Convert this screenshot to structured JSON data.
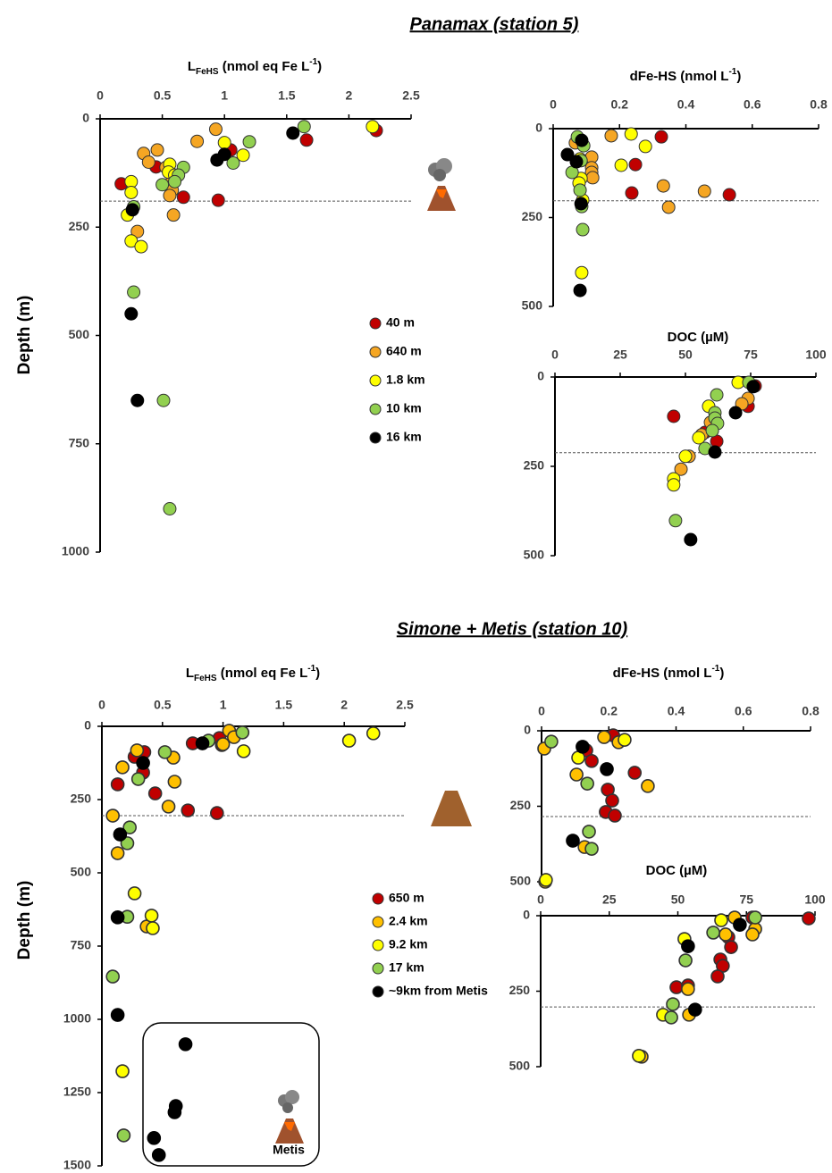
{
  "chart_data": [
    {
      "type": "scatter",
      "title": "Panamax (station 5)",
      "y_label": "Depth (m)",
      "xlabel": {
        "text": "L",
        "sub": "FeHS",
        "after": " (nmol eq Fe L",
        "sup": "-1",
        "end": ")"
      },
      "xlim": [
        0,
        2.5
      ],
      "xticks": [
        0,
        0.5,
        1,
        1.5,
        2,
        2.5
      ],
      "ylim": [
        0,
        1000
      ],
      "yticks": [
        0,
        250,
        500,
        750,
        1000
      ],
      "y_inverted": true,
      "x_axis_position": "top",
      "reference_line": 190,
      "series": [
        {
          "name": "40 m",
          "color": "#c00000",
          "x": [
            2.22,
            1.66,
            1.05,
            0.45,
            0.17,
            0.67,
            0.95
          ],
          "y": [
            27,
            49,
            72,
            111,
            150,
            181,
            188
          ]
        },
        {
          "name": "640 m",
          "color": "#f5a623",
          "x": [
            0.93,
            0.46,
            0.35,
            0.39,
            0.78,
            0.53,
            0.57,
            0.58,
            0.56,
            0.59,
            0.3
          ],
          "y": [
            24,
            72,
            80,
            100,
            52,
            112,
            148,
            165,
            177,
            222,
            260
          ]
        },
        {
          "name": "1.8 km",
          "color": "#ffff00",
          "x": [
            2.19,
            1.15,
            1.0,
            0.56,
            0.55,
            0.6,
            0.25,
            0.25,
            0.22,
            0.25,
            0.33
          ],
          "y": [
            18,
            84,
            55,
            105,
            123,
            130,
            145,
            170,
            222,
            282,
            295
          ]
        },
        {
          "name": "10 km",
          "color": "#92d050",
          "x": [
            1.64,
            1.2,
            1.07,
            0.67,
            0.63,
            0.6,
            0.5,
            0.27,
            0.27,
            0.51,
            0.56
          ],
          "y": [
            18,
            53,
            102,
            112,
            130,
            145,
            152,
            203,
            400,
            650,
            900
          ]
        },
        {
          "name": "16 km",
          "color": "#000000",
          "x": [
            1.55,
            1.0,
            0.94,
            0.26,
            0.25,
            0.3
          ],
          "y": [
            33,
            82,
            95,
            210,
            450,
            650
          ]
        }
      ]
    },
    {
      "type": "scatter",
      "xlabel": {
        "text": "dFe-HS (nmol L",
        "sup": "-1",
        "end": ")"
      },
      "xlim": [
        0,
        0.8
      ],
      "xticks": [
        0,
        0.2,
        0.4,
        0.6,
        0.8
      ],
      "ylim": [
        0,
        500
      ],
      "yticks": [
        0,
        250,
        500
      ],
      "y_inverted": true,
      "x_axis_position": "top",
      "reference_line": 203,
      "series": [
        {
          "color": "#c00000",
          "x": [
            0.326,
            0.248,
            0.237,
            0.531
          ],
          "y": [
            23,
            101,
            181,
            186
          ]
        },
        {
          "color": "#f5a623",
          "x": [
            0.175,
            0.067,
            0.116,
            0.116,
            0.116,
            0.119,
            0.332,
            0.456,
            0.348
          ],
          "y": [
            20,
            40,
            80,
            110,
            123,
            138,
            161,
            176,
            221
          ]
        },
        {
          "color": "#ffff00",
          "x": [
            0.235,
            0.278,
            0.205,
            0.081,
            0.084,
            0.078,
            0.089,
            0.086
          ],
          "y": [
            15,
            50,
            103,
            85,
            140,
            153,
            201,
            405
          ]
        },
        {
          "color": "#92d050",
          "x": [
            0.073,
            0.092,
            0.084,
            0.057,
            0.081,
            0.086,
            0.089
          ],
          "y": [
            23,
            48,
            90,
            123,
            173,
            219,
            284
          ]
        },
        {
          "color": "#000000",
          "x": [
            0.086,
            0.043,
            0.07,
            0.084,
            0.081
          ],
          "y": [
            33,
            73,
            93,
            211,
            455
          ]
        }
      ]
    },
    {
      "type": "scatter",
      "xlabel": {
        "text": "DOC (µM)"
      },
      "xlim": [
        0,
        100
      ],
      "xticks": [
        0,
        25,
        50,
        75,
        100
      ],
      "ylim": [
        0,
        500
      ],
      "yticks": [
        0,
        250,
        500
      ],
      "y_inverted": true,
      "x_axis_position": "top",
      "reference_line": 212,
      "series": [
        {
          "color": "#c00000",
          "x": [
            76.7,
            45.5,
            57.5,
            62,
            74
          ],
          "y": [
            25,
            110,
            155,
            180,
            82
          ]
        },
        {
          "color": "#f5a623",
          "x": [
            74,
            71.6,
            51.4,
            48.3,
            56.2,
            59.6
          ],
          "y": [
            60,
            75,
            222,
            258,
            162,
            127
          ]
        },
        {
          "color": "#ffff00",
          "x": [
            70.2,
            58.9,
            50,
            45.5,
            45.5,
            55.1
          ],
          "y": [
            15,
            82,
            222,
            285,
            302,
            170
          ]
        },
        {
          "color": "#92d050",
          "x": [
            74.3,
            62,
            61.3,
            61.3,
            62.3,
            60.3,
            57.5,
            46.2
          ],
          "y": [
            15,
            50,
            100,
            115,
            130,
            150,
            200,
            402
          ]
        },
        {
          "color": "#000000",
          "x": [
            76,
            69.2,
            61.3,
            52
          ],
          "y": [
            27,
            100,
            210,
            455
          ]
        }
      ]
    },
    {
      "type": "scatter",
      "title": "Simone + Metis (station 10)",
      "y_label": "Depth (m)",
      "inset_label": "Metis",
      "xlabel": {
        "text": "L",
        "sub": "FeHS",
        "after": " (nmol eq Fe L",
        "sup": "-1",
        "end": ")"
      },
      "xlim": [
        0,
        2.5
      ],
      "xticks": [
        0,
        0.5,
        1,
        1.5,
        2,
        2.5
      ],
      "ylim": [
        0,
        1500
      ],
      "yticks": [
        0,
        250,
        500,
        750,
        1000,
        1250,
        1500
      ],
      "y_inverted": true,
      "x_axis_position": "top",
      "reference_line": 305,
      "series": [
        {
          "name": "650 m",
          "color": "#c00000",
          "x": [
            0.35,
            0.97,
            0.99,
            0.75,
            0.27,
            0.34,
            0.13,
            0.44,
            0.71,
            0.95
          ],
          "y": [
            88,
            40,
            64,
            58,
            104,
            158,
            198,
            229,
            287,
            296
          ]
        },
        {
          "name": "2.4 km",
          "color": "#ffc000",
          "x": [
            0.29,
            0.17,
            0.59,
            0.6,
            0.55,
            1.05,
            1.09,
            1.0,
            0.09,
            0.13,
            0.37
          ],
          "y": [
            82,
            140,
            107,
            189,
            274,
            15,
            37,
            61,
            305,
            433,
            683
          ]
        },
        {
          "name": "9.2 km",
          "color": "#ffff00",
          "x": [
            2.24,
            2.04,
            1.17,
            0.27,
            0.41,
            0.42,
            0.17
          ],
          "y": [
            24,
            49,
            85,
            570,
            646,
            689,
            1177
          ]
        },
        {
          "name": "17 km",
          "color": "#92d050",
          "x": [
            1.16,
            0.88,
            0.52,
            0.3,
            0.23,
            0.21,
            0.21,
            0.09,
            0.18
          ],
          "y": [
            21,
            49,
            88,
            180,
            345,
            399,
            650,
            854,
            1396
          ]
        },
        {
          "name": "~9km from Metis",
          "color": "#000000",
          "x": [
            0.83,
            0.34,
            0.15,
            0.13,
            0.13,
            0.69,
            0.61,
            0.6,
            0.43,
            0.47
          ],
          "y": [
            58,
            125,
            369,
            652,
            985,
            1085,
            1296,
            1317,
            1405,
            1463
          ]
        }
      ]
    },
    {
      "type": "scatter",
      "xlabel": {
        "text": "dFe-HS (nmol L",
        "sup": "-1",
        "end": ")"
      },
      "xlim": [
        0,
        0.8
      ],
      "xticks": [
        0,
        0.2,
        0.4,
        0.6,
        0.8
      ],
      "ylim": [
        0,
        500
      ],
      "yticks": [
        0,
        250,
        500
      ],
      "y_inverted": true,
      "x_axis_position": "top",
      "reference_line": 284,
      "series": [
        {
          "color": "#c00000",
          "x": [
            0.213,
            0.133,
            0.149,
            0.277,
            0.197,
            0.21,
            0.191,
            0.218
          ],
          "y": [
            15,
            65,
            100,
            139,
            195,
            231,
            269,
            281
          ]
        },
        {
          "color": "#ffc000",
          "x": [
            0.186,
            0.229,
            0.008,
            0.104,
            0.316,
            0.128,
            0.011
          ],
          "y": [
            21,
            38,
            59,
            145,
            183,
            385,
            500
          ]
        },
        {
          "color": "#ffff00",
          "x": [
            0.247,
            0.109,
            0.013
          ],
          "y": [
            30,
            89,
            494
          ]
        },
        {
          "color": "#92d050",
          "x": [
            0.029,
            0.136,
            0.141,
            0.149
          ],
          "y": [
            36,
            175,
            334,
            391
          ]
        },
        {
          "color": "#000000",
          "x": [
            0.122,
            0.194,
            0.093
          ],
          "y": [
            53,
            127,
            364
          ]
        }
      ]
    },
    {
      "type": "scatter",
      "xlabel": {
        "text": "DOC (µM)"
      },
      "xlim": [
        0,
        100
      ],
      "xticks": [
        0,
        25,
        50,
        75,
        100
      ],
      "ylim": [
        0,
        500
      ],
      "yticks": [
        0,
        250,
        500
      ],
      "y_inverted": true,
      "x_axis_position": "top",
      "reference_line": 302,
      "series": [
        {
          "color": "#c00000",
          "x": [
            77.2,
            97.7,
            68.4,
            69.4,
            65.5,
            66.4,
            64.5,
            49.5,
            53.7
          ],
          "y": [
            6,
            9,
            71,
            104,
            145,
            166,
            201,
            237,
            231
          ]
        },
        {
          "color": "#ffc000",
          "x": [
            70.7,
            78.2,
            77.2,
            67.4,
            53.7,
            54.1,
            36.8
          ],
          "y": [
            6,
            44,
            62,
            62,
            243,
            328,
            467
          ]
        },
        {
          "color": "#ffff00",
          "x": [
            65.8,
            52.4,
            44.6,
            35.8
          ],
          "y": [
            15,
            77,
            328,
            464
          ]
        },
        {
          "color": "#92d050",
          "x": [
            78.2,
            62.9,
            52.8,
            48.2,
            47.6
          ],
          "y": [
            6,
            56,
            148,
            293,
            337
          ]
        },
        {
          "color": "#000000",
          "x": [
            72.6,
            53.7,
            56.3
          ],
          "y": [
            30,
            101,
            311
          ]
        }
      ]
    }
  ]
}
